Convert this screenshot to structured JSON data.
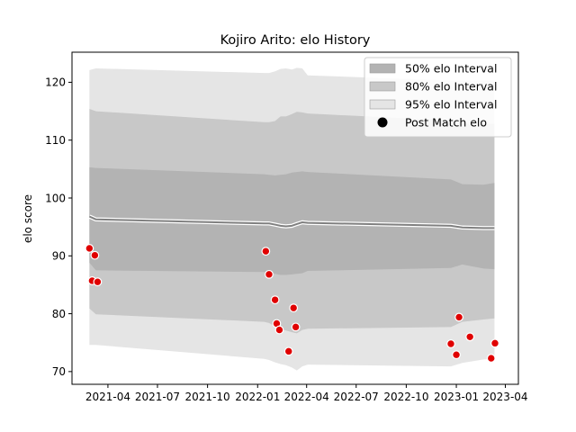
{
  "chart_data": {
    "type": "area",
    "title": "Kojiro Arito: elo History",
    "xlabel": "",
    "ylabel": "elo score",
    "xlim": [
      "2021-01-25",
      "2023-04-25"
    ],
    "ylim": [
      67.8,
      125.2
    ],
    "x_ticks": [
      "2021-04",
      "2021-07",
      "2021-10",
      "2022-01",
      "2022-04",
      "2022-07",
      "2022-10",
      "2023-01",
      "2023-04"
    ],
    "y_ticks": [
      70,
      80,
      90,
      100,
      110,
      120
    ],
    "grid": false,
    "legend_position": "top-right",
    "bands": [
      {
        "name": "95% elo Interval",
        "color": "#e5e5e5",
        "x": [
          "2021-02-26",
          "2021-03-10",
          "2022-01-13",
          "2022-01-22",
          "2022-02-02",
          "2022-02-12",
          "2022-02-22",
          "2022-03-05",
          "2022-03-14",
          "2022-03-24",
          "2022-04-03",
          "2022-12-22",
          "2023-01-12",
          "2023-02-20",
          "2023-03-12"
        ],
        "upper": [
          122.1,
          122.4,
          121.6,
          121.6,
          121.9,
          122.3,
          122.4,
          122.2,
          122.5,
          122.4,
          121.2,
          120.3,
          120.3,
          120.3,
          120.3
        ],
        "lower": [
          74.6,
          74.6,
          72.2,
          72.0,
          71.6,
          71.3,
          71.1,
          70.7,
          70.2,
          70.9,
          71.2,
          70.9,
          71.5,
          72.1,
          72.2
        ]
      },
      {
        "name": "80% elo Interval",
        "color": "#c8c8c8",
        "x": [
          "2021-02-26",
          "2021-03-10",
          "2022-01-13",
          "2022-01-22",
          "2022-02-02",
          "2022-02-12",
          "2022-02-22",
          "2022-03-05",
          "2022-03-14",
          "2022-03-24",
          "2022-04-03",
          "2022-12-22",
          "2023-01-12",
          "2023-02-20",
          "2023-03-12"
        ],
        "upper": [
          115.4,
          115.0,
          113.1,
          113.1,
          113.3,
          114.1,
          114.1,
          114.5,
          114.9,
          114.8,
          114.6,
          113.4,
          112.9,
          112.8,
          112.8
        ],
        "lower": [
          80.9,
          79.9,
          78.6,
          78.4,
          77.8,
          77.3,
          77.1,
          76.8,
          76.6,
          77.2,
          77.4,
          77.7,
          78.6,
          79.0,
          79.2
        ]
      },
      {
        "name": "50% elo Interval",
        "color": "#b3b3b3",
        "x": [
          "2021-02-26",
          "2021-03-10",
          "2022-01-13",
          "2022-01-22",
          "2022-02-02",
          "2022-02-12",
          "2022-02-22",
          "2022-03-05",
          "2022-03-14",
          "2022-03-24",
          "2022-04-03",
          "2022-12-22",
          "2023-01-12",
          "2023-02-20",
          "2023-03-12"
        ],
        "upper": [
          105.3,
          105.2,
          104.1,
          104.0,
          103.9,
          104.0,
          104.1,
          104.4,
          104.5,
          104.6,
          104.5,
          103.2,
          102.4,
          102.3,
          102.6
        ],
        "lower": [
          88.8,
          87.5,
          87.2,
          87.1,
          86.9,
          86.7,
          86.7,
          86.8,
          86.9,
          87.0,
          87.4,
          87.9,
          88.5,
          87.8,
          87.7
        ]
      }
    ],
    "mean_line": {
      "x": [
        "2021-02-26",
        "2021-03-10",
        "2022-01-13",
        "2022-01-22",
        "2022-02-02",
        "2022-02-12",
        "2022-02-22",
        "2022-03-05",
        "2022-03-14",
        "2022-03-24",
        "2022-04-03",
        "2022-12-22",
        "2023-01-12",
        "2023-02-20",
        "2023-03-12"
      ],
      "y": [
        96.8,
        96.3,
        95.6,
        95.6,
        95.4,
        95.2,
        95.1,
        95.2,
        95.5,
        95.8,
        95.7,
        95.2,
        94.9,
        94.8,
        94.8
      ],
      "color": "#808080"
    },
    "points": {
      "name": "Post Match elo",
      "color": "#e00000",
      "x": [
        "2021-02-26",
        "2021-03-03",
        "2021-03-08",
        "2021-03-13",
        "2022-01-16",
        "2022-01-22",
        "2022-02-02",
        "2022-02-05",
        "2022-02-10",
        "2022-02-27",
        "2022-03-08",
        "2022-03-12",
        "2022-12-22",
        "2023-01-01",
        "2023-01-06",
        "2023-01-26",
        "2023-03-06",
        "2023-03-13"
      ],
      "y": [
        91.3,
        85.7,
        90.1,
        85.5,
        90.8,
        86.8,
        82.4,
        78.3,
        77.2,
        73.5,
        81.0,
        77.7,
        74.8,
        72.9,
        79.4,
        76.0,
        72.3,
        74.9
      ]
    },
    "legend": [
      {
        "label": "50% elo Interval",
        "kind": "patch",
        "color": "#b3b3b3"
      },
      {
        "label": "80% elo Interval",
        "kind": "patch",
        "color": "#c8c8c8"
      },
      {
        "label": "95% elo Interval",
        "kind": "patch",
        "color": "#e5e5e5"
      },
      {
        "label": "Post Match elo",
        "kind": "marker",
        "color": "#000000"
      }
    ]
  }
}
